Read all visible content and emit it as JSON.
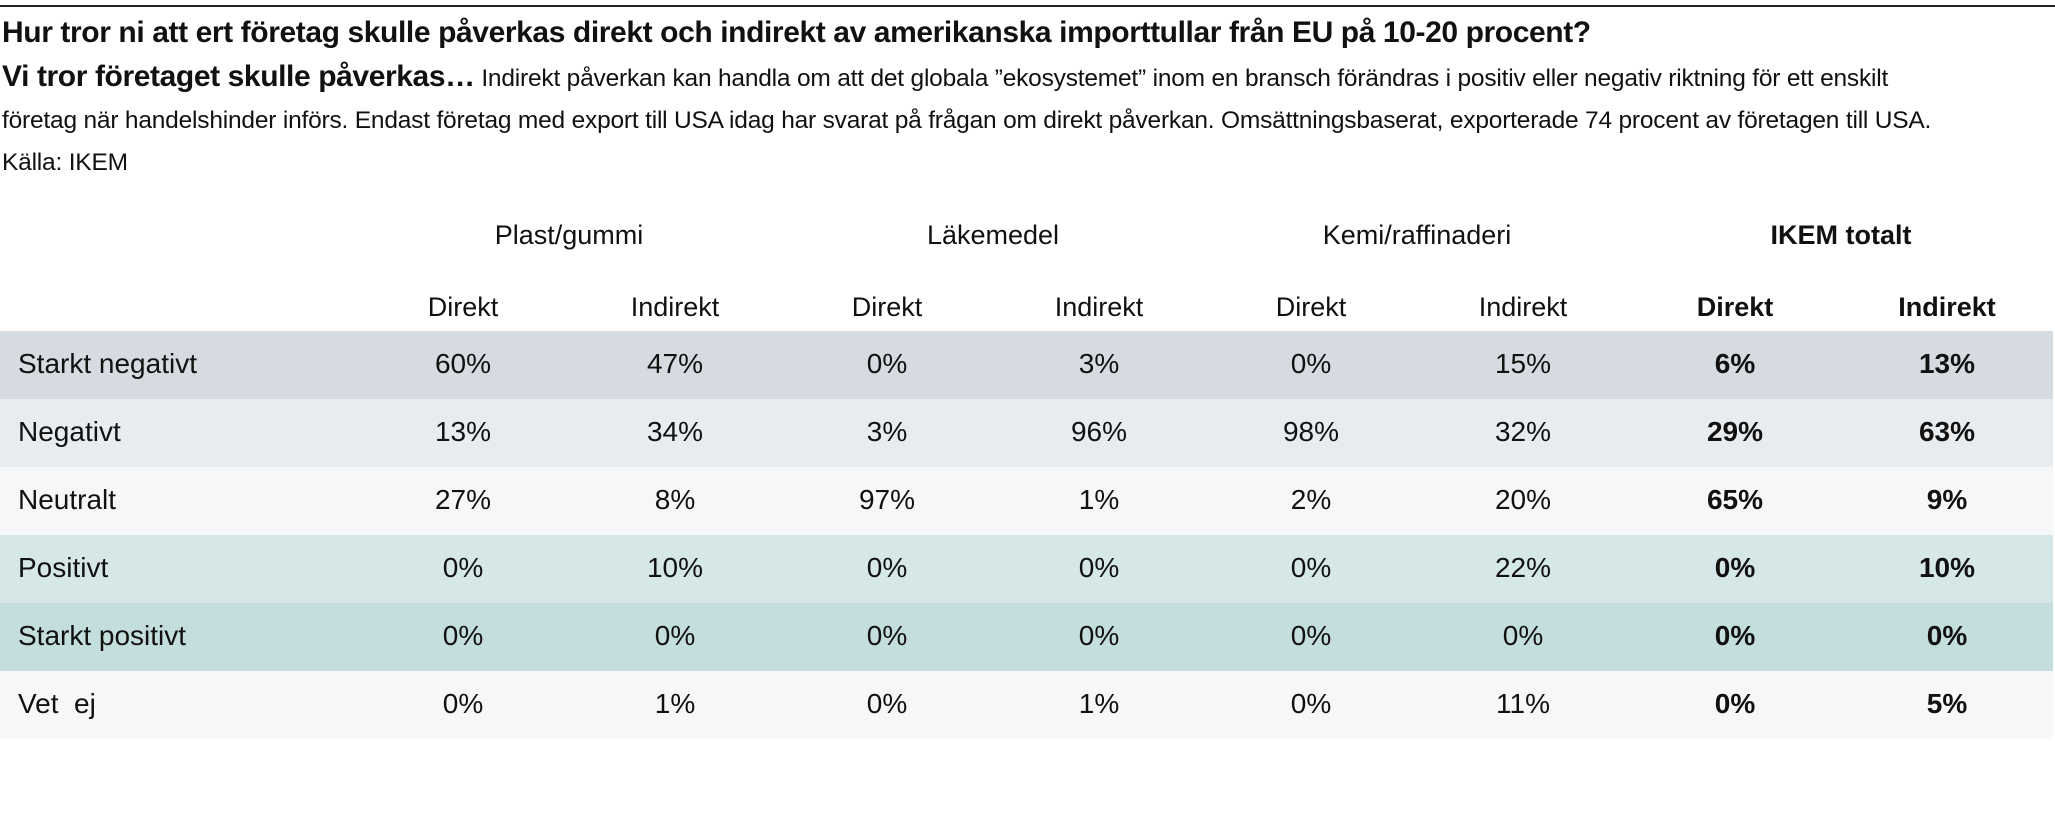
{
  "header": {
    "title": "Hur tror ni att ert företag skulle påverkas direkt och indirekt av amerikanska importtullar från EU på 10-20 procent?",
    "subtitle": "Vi tror företaget skulle påverkas…",
    "description": "Indirekt påverkan kan handla om att det globala ”ekosystemet” inom en bransch förändras i positiv eller negativ riktning för ett enskilt företag när handelshinder införs. Endast företag med export till USA idag har svarat på frågan om direkt påverkan. Omsättningsbaserat, exporterade 74 procent av företagen till USA. Källa: IKEM"
  },
  "chart_data": {
    "type": "table",
    "title": "Hur tror ni att ert företag skulle påverkas direkt och indirekt av amerikanska importtullar från EU på 10-20 procent?",
    "subtitle": "Vi tror företaget skulle påverkas…",
    "source": "IKEM",
    "groups": [
      {
        "name": "Plast/gummi",
        "bold": false
      },
      {
        "name": "Läkemedel",
        "bold": false
      },
      {
        "name": "Kemi/raffinaderi",
        "bold": false
      },
      {
        "name": "IKEM totalt",
        "bold": true
      }
    ],
    "subcolumns": [
      "Direkt",
      "Indirekt"
    ],
    "columns": [
      "Plast/gummi Direkt",
      "Plast/gummi Indirekt",
      "Läkemedel Direkt",
      "Läkemedel Indirekt",
      "Kemi/raffinaderi Direkt",
      "Kemi/raffinaderi Indirekt",
      "IKEM totalt Direkt",
      "IKEM totalt Indirekt"
    ],
    "rows": [
      {
        "label": "Starkt negativt",
        "color": "#d5dbe1",
        "values": [
          "60%",
          "47%",
          "0%",
          "3%",
          "0%",
          "15%",
          "6%",
          "13%"
        ]
      },
      {
        "label": "Negativt",
        "color": "#e8ecef",
        "values": [
          "13%",
          "34%",
          "3%",
          "96%",
          "98%",
          "32%",
          "29%",
          "63%"
        ]
      },
      {
        "label": "Neutralt",
        "color": "#f5f7f9",
        "values": [
          "27%",
          "8%",
          "97%",
          "1%",
          "2%",
          "20%",
          "65%",
          "9%"
        ]
      },
      {
        "label": "Positivt",
        "color": "#d6e7e7",
        "values": [
          "0%",
          "10%",
          "0%",
          "0%",
          "0%",
          "22%",
          "0%",
          "10%"
        ]
      },
      {
        "label": "Starkt positivt",
        "color": "#c4dede",
        "values": [
          "0%",
          "0%",
          "0%",
          "0%",
          "0%",
          "0%",
          "0%",
          "0%"
        ]
      },
      {
        "label": "Vet  ej",
        "color": "#f5f7f9",
        "values": [
          "0%",
          "1%",
          "0%",
          "1%",
          "0%",
          "11%",
          "0%",
          "5%"
        ]
      }
    ]
  }
}
